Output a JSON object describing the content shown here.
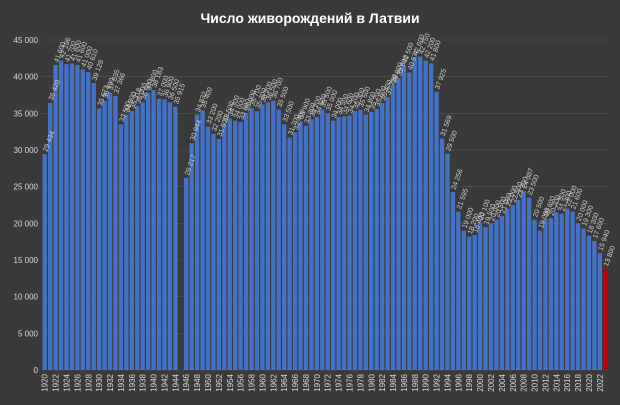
{
  "chart_data": {
    "type": "bar",
    "title": "Число живорождений в Латвии",
    "xlabel": "",
    "ylabel": "",
    "ylim": [
      0,
      45000
    ],
    "yticks": [
      0,
      5000,
      10000,
      15000,
      20000,
      25000,
      30000,
      35000,
      40000,
      45000
    ],
    "ytick_labels": [
      "0",
      "5 000",
      "10 000",
      "15 000",
      "20 000",
      "25 000",
      "30 000",
      "35 000",
      "40 000",
      "45 000"
    ],
    "grid": true,
    "x": [
      1920,
      1921,
      1922,
      1923,
      1924,
      1925,
      1926,
      1927,
      1928,
      1929,
      1930,
      1931,
      1932,
      1933,
      1934,
      1935,
      1936,
      1937,
      1938,
      1939,
      1940,
      1941,
      1942,
      1943,
      1944,
      1945,
      1946,
      1947,
      1948,
      1949,
      1950,
      1951,
      1952,
      1953,
      1954,
      1955,
      1956,
      1957,
      1958,
      1959,
      1960,
      1961,
      1962,
      1963,
      1964,
      1965,
      1966,
      1967,
      1968,
      1969,
      1970,
      1971,
      1972,
      1973,
      1974,
      1975,
      1976,
      1977,
      1978,
      1979,
      1980,
      1981,
      1982,
      1983,
      1984,
      1985,
      1986,
      1987,
      1988,
      1989,
      1990,
      1991,
      1992,
      1993,
      1994,
      1995,
      1996,
      1997,
      1998,
      1999,
      2000,
      2001,
      2002,
      2003,
      2004,
      2005,
      2006,
      2007,
      2008,
      2009,
      2010,
      2011,
      2012,
      2013,
      2014,
      2015,
      2016,
      2017,
      2018,
      2019,
      2020,
      2021,
      2022,
      2023
    ],
    "values": [
      29434,
      36420,
      41600,
      42196,
      41700,
      41800,
      41600,
      41000,
      40610,
      39129,
      35673,
      36700,
      37835,
      37366,
      33500,
      34800,
      35318,
      36000,
      36500,
      37800,
      38183,
      37000,
      36900,
      36500,
      35915,
      null,
      26217,
      30944,
      34832,
      35400,
      33200,
      32200,
      31500,
      33500,
      34300,
      34000,
      33800,
      35000,
      35700,
      35300,
      36200,
      36500,
      36700,
      35500,
      33500,
      31700,
      32400,
      33900,
      33300,
      34200,
      34500,
      35500,
      35000,
      34000,
      34500,
      34600,
      34700,
      35300,
      35500,
      34800,
      35200,
      35600,
      36400,
      37200,
      38800,
      39800,
      41500,
      40577,
      42600,
      42750,
      42200,
      41800,
      37925,
      31569,
      29500,
      24256,
      21595,
      19000,
      18200,
      18400,
      20100,
      19500,
      20000,
      20500,
      21000,
      22000,
      22500,
      23200,
      24387,
      23500,
      20500,
      19000,
      20600,
      20700,
      21500,
      21300,
      22000,
      21600,
      20000,
      19300,
      18300,
      17600,
      15940,
      13800
    ],
    "data_labels": [
      "29 434",
      "36 420",
      "41 600",
      "42 196",
      "41 700",
      "41 800",
      "41 600",
      "41 000",
      "40 610",
      "39 129",
      "35 673",
      "36 700",
      "37 835",
      "37 366",
      "33 500",
      "34 800",
      "35 318",
      "36 000",
      "36 500",
      "37 800",
      "38 183",
      "37 000",
      "36 900",
      "36 500",
      "35 915",
      "",
      "26 217",
      "30 944",
      "34 832",
      "35 400",
      "33 200",
      "32 200",
      "31 500",
      "33 500",
      "34 300",
      "34 000",
      "33 800",
      "35 000",
      "35 700",
      "35 300",
      "36 200",
      "36 500",
      "36 700",
      "35 500",
      "33 500",
      "31 700",
      "32 400",
      "33 900",
      "33 300",
      "34 200",
      "34 500",
      "35 500",
      "35 000",
      "34 000",
      "34 500",
      "34 600",
      "34 700",
      "35 300",
      "35 500",
      "34 800",
      "35 200",
      "35 600",
      "36 400",
      "37 200",
      "38 800",
      "39 800",
      "41 500",
      "40 577",
      "42 600",
      "42 750",
      "42 200",
      "41 800",
      "37 925",
      "31 569",
      "29 500",
      "24 256",
      "21 595",
      "19 000",
      "18 200",
      "18 400",
      "20 100",
      "19 500",
      "20 000",
      "20 500",
      "21 000",
      "22 000",
      "22 500",
      "23 200",
      "24 387",
      "23 500",
      "20 500",
      "19 000",
      "20 600",
      "20 700",
      "21 500",
      "21 300",
      "22 000",
      "21 600",
      "20 000",
      "19 300",
      "18 300",
      "17 600",
      "15 940",
      "13 800"
    ],
    "xtick_labels": [
      "1920",
      "1922",
      "1924",
      "1926",
      "1928",
      "1930",
      "1932",
      "1934",
      "1936",
      "1938",
      "1940",
      "1942",
      "1944",
      "1946",
      "1948",
      "1950",
      "1952",
      "1954",
      "1956",
      "1958",
      "1960",
      "1962",
      "1964",
      "1966",
      "1968",
      "1970",
      "1972",
      "1974",
      "1976",
      "1978",
      "1980",
      "1982",
      "1984",
      "1986",
      "1988",
      "1990",
      "1992",
      "1994",
      "1996",
      "1998",
      "2000",
      "2002",
      "2004",
      "2006",
      "2008",
      "2010",
      "2012",
      "2014",
      "2016",
      "2018",
      "2020",
      "2022"
    ],
    "bar_color": "#4472c4",
    "highlight_color": "#c00000",
    "highlight_index": 103,
    "background_color": "#3a3a3a",
    "text_color": "#d9d9d9"
  }
}
